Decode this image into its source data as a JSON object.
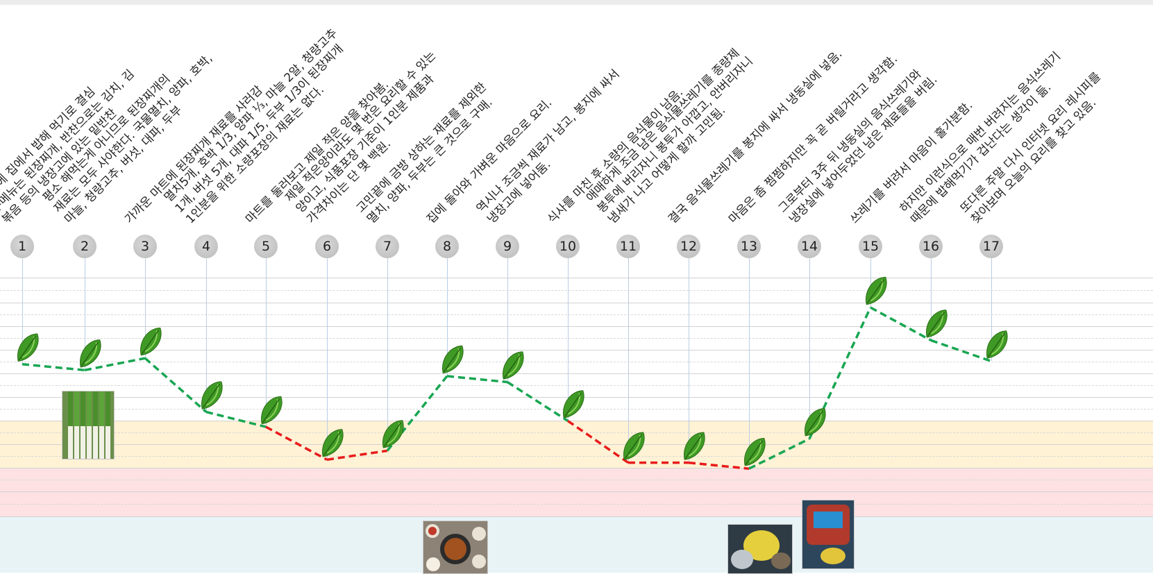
{
  "steps": [
    {
      "number": "1",
      "lines": [
        "간만에 집에서 밥해 먹기로 결심",
        "주메뉴는 된장찌개, 반찬으로는 김치, 김",
        "볶음 등의 냉장고에 있는 밑반찬"
      ]
    },
    {
      "number": "2",
      "lines": [
        "평소 해먹는게 아니므로 된장찌개의",
        "재료는 모두 사야한다. 국물멸치, 양파, 호박,",
        "마늘, 청량고추, 버섯, 대파, 두부"
      ]
    },
    {
      "number": "3",
      "lines": [
        "가까운 마트에 된장찌개 재료를 사러감"
      ]
    },
    {
      "number": "4",
      "lines": [
        "멸치5개, 호박 1/3, 양파 ⅓, 마늘 2알, 청량고추",
        "1개, 버섯 5개, 대파 1/5, 두부 1/3이 된장찌개",
        "1인분을 위한 소량포장의 재료는 없다."
      ]
    },
    {
      "number": "5",
      "lines": [
        "마트를 둘러보고 제일 적은 양을 찾아봄."
      ]
    },
    {
      "number": "6",
      "lines": [
        "제일 적은양이라도 몇 번은 요리할 수 있는",
        "양이고, 식품포장 기준이 1인분 제품과",
        "가격차이는 단 몇 백원."
      ]
    },
    {
      "number": "7",
      "lines": [
        "고민끝에 금방 상하는 재료를 제외한",
        "멸치, 양파, 두부는 큰 것으로 구매."
      ]
    },
    {
      "number": "8",
      "lines": [
        "집에 돌아와 가벼운 마음으로 요리."
      ]
    },
    {
      "number": "9",
      "lines": [
        "역시나 조금씩 재료가 남고, 봉지에 싸서",
        "냉장고에 넣어둠."
      ]
    },
    {
      "number": "10",
      "lines": [
        "식사를 마친 후 소량의 음식물이 남음."
      ]
    },
    {
      "number": "11",
      "lines": [
        "애매하게 조금 남은 음식물쓰레기를 종량제",
        "봉투에 버리자니 봉투가 아깝고, 안버리자니",
        "냄새가 나고 어떻게 할까 고민됨."
      ]
    },
    {
      "number": "12",
      "lines": [
        "결국 음식물쓰레기를 봉지에 싸서 냉동실에 넣음."
      ]
    },
    {
      "number": "13",
      "lines": [
        "마음은 좀 찜찜하지만 꼭 곧 버릴거라고 생각함."
      ]
    },
    {
      "number": "14",
      "lines": [
        "그로부터 3주 뒤 냉동실의 음식쓰레기와",
        "냉장실에 넣어두었던 남은 재료들을 버림."
      ]
    },
    {
      "number": "15",
      "lines": [
        "쓰레기를 버려서 마음이 홀가분함."
      ]
    },
    {
      "number": "16",
      "lines": [
        "하지만 이런식으로 매번 버려지는 음식쓰레기",
        "때문에 밥해먹기가 겁난다는 생각이 듦."
      ]
    },
    {
      "number": "17",
      "lines": [
        "또다른 주말 다시 인터넷 요리 레시피를",
        "찾아보며 오늘의 요리를 찾고 있음."
      ]
    }
  ],
  "chart_data": {
    "type": "line",
    "x": [
      1,
      2,
      3,
      4,
      5,
      6,
      7,
      8,
      9,
      10,
      11,
      12,
      13,
      14,
      15,
      16,
      17
    ],
    "values": [
      5.1,
      4.9,
      5.3,
      3.5,
      3.0,
      1.9,
      2.2,
      4.7,
      4.5,
      3.2,
      1.8,
      1.8,
      1.6,
      2.6,
      7.0,
      5.9,
      5.2
    ],
    "ylim": [
      0,
      8
    ],
    "bands": [
      {
        "name": "neutral",
        "from": 3.75,
        "to": 8.0,
        "color": "#ffffff"
      },
      {
        "name": "mild",
        "from": 2.0,
        "to": 3.75,
        "color": "#fff2d5"
      },
      {
        "name": "bad",
        "from": 0.0,
        "to": 2.0,
        "color": "#fde1e3"
      },
      {
        "name": "photos",
        "from": -2.3,
        "to": 0.0,
        "color": "#e8f3f6"
      }
    ],
    "line_colors": {
      "positive": "#18a652",
      "negative": "#e81b1b"
    },
    "marker": "leaf-icon",
    "grid": true
  },
  "photos": [
    {
      "step": "2",
      "subject": "green-onions-photo"
    },
    {
      "step": "7",
      "subject": "cooked-meal-photo"
    },
    {
      "step": "13",
      "subject": "frozen-food-waste-photo"
    },
    {
      "step": "14",
      "subject": "food-waste-bin-photo"
    }
  ]
}
